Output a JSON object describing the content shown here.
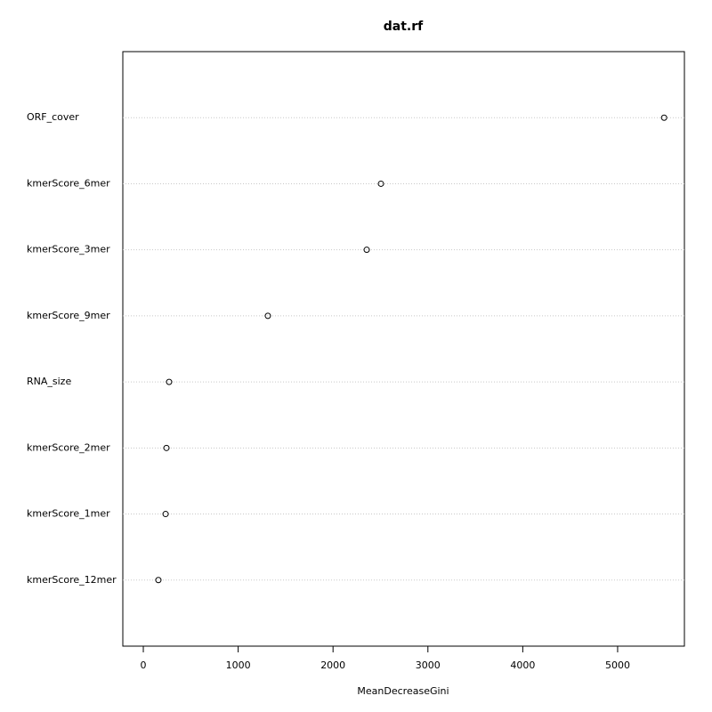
{
  "chart_data": {
    "type": "dot",
    "title": "dat.rf",
    "x_label": "MeanDecreaseGini",
    "categories": [
      "ORF_cover",
      "kmerScore_6mer",
      "kmerScore_3mer",
      "kmerScore_9mer",
      "RNA_size",
      "kmerScore_2mer",
      "kmerScore_1mer",
      "kmerScore_12mer"
    ],
    "values": [
      5490,
      2505,
      2355,
      1313,
      272,
      244,
      235,
      159
    ],
    "xlim": [
      -216,
      5704
    ],
    "xticks": [
      0,
      1000,
      2000,
      3000,
      4000,
      5000
    ],
    "grid": true,
    "color": "#000000"
  }
}
